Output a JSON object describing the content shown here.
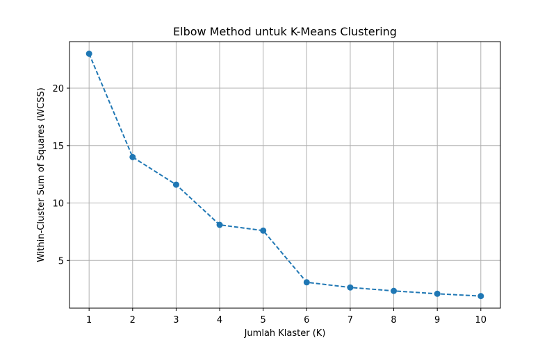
{
  "chart_data": {
    "type": "line",
    "title": "Elbow Method untuk K-Means Clustering",
    "xlabel": "Jumlah Klaster (K)",
    "ylabel": "Within-Cluster Sum of Squares (WCSS)",
    "x": [
      1,
      2,
      3,
      4,
      5,
      6,
      7,
      8,
      9,
      10
    ],
    "series": [
      {
        "values": [
          23.0,
          14.0,
          11.6,
          8.1,
          7.6,
          3.1,
          2.65,
          2.35,
          2.1,
          1.9
        ],
        "color": "#1f77b4",
        "linestyle": "dashed",
        "marker": "circle"
      }
    ],
    "xticks": [
      "1",
      "2",
      "3",
      "4",
      "5",
      "6",
      "7",
      "8",
      "9",
      "10"
    ],
    "yticks": [
      "5",
      "10",
      "15",
      "20"
    ],
    "xlim": [
      0.55,
      10.45
    ],
    "ylim": [
      0.85,
      24.05
    ],
    "grid": true
  }
}
